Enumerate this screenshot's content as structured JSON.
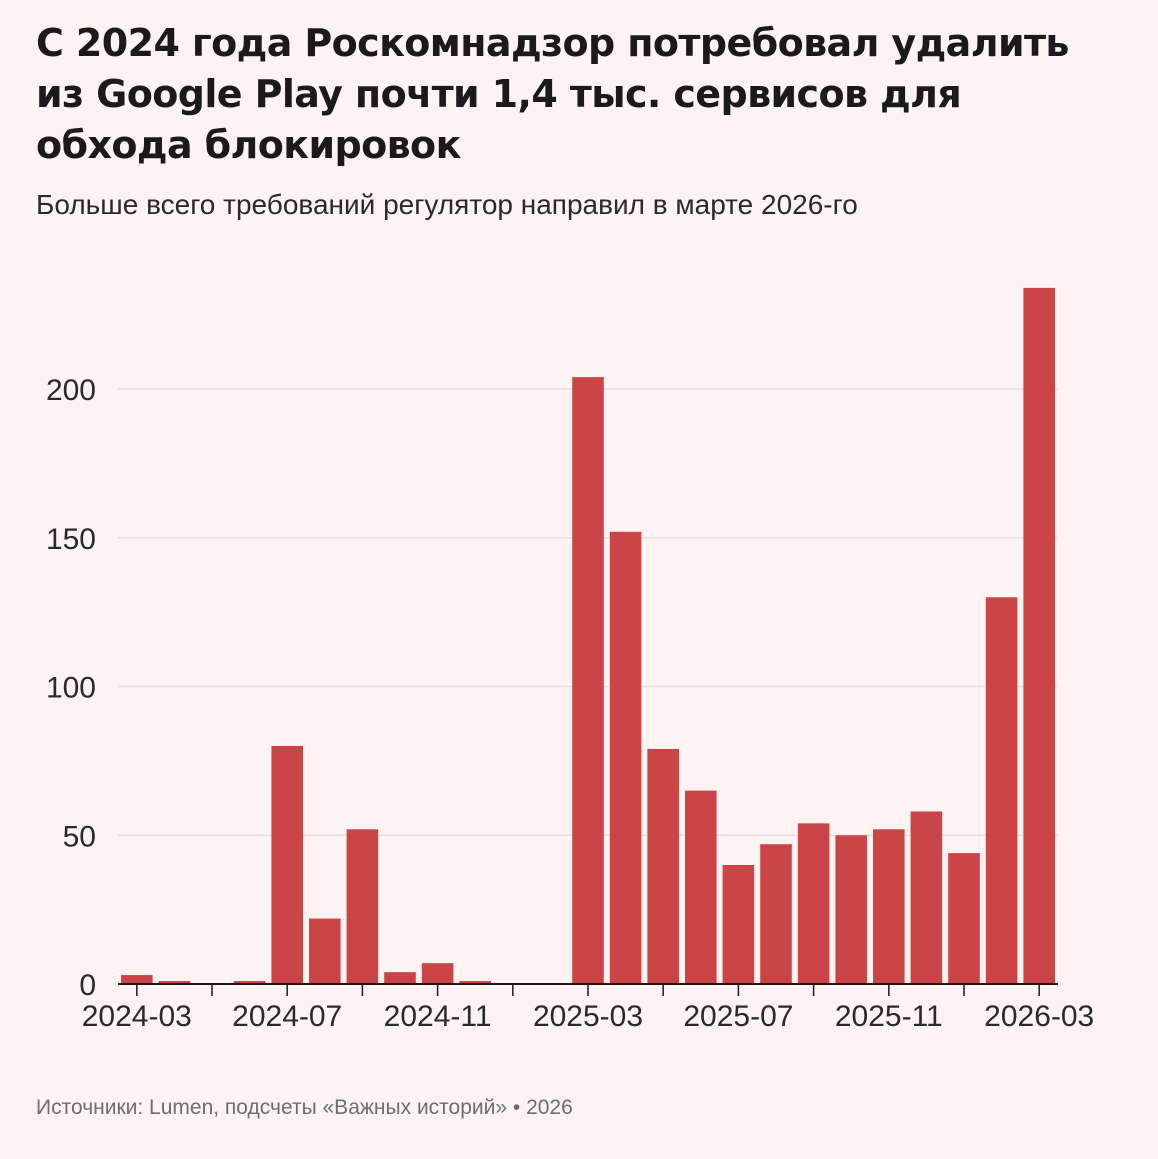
{
  "header": {
    "title": "С 2024 года Роскомнадзор потребовал удалить из Google Play почти 1,4 тыс. сервисов для обхода блокировок",
    "subtitle": "Больше всего требований регулятор направил в марте 2026-го"
  },
  "footer": {
    "source": "Источники: Lumen, подсчеты «Важных историй» • 2026"
  },
  "colors": {
    "bar": "#cb4547",
    "background": "#fdf3f3",
    "grid": "#e6e0e0",
    "axis": "#1a1a1a"
  },
  "chart_data": {
    "type": "bar",
    "title": "С 2024 года Роскомнадзор потребовал удалить из Google Play почти 1,4 тыс. сервисов для обхода блокировок",
    "subtitle": "Больше всего требований регулятор направил в марте 2026-го",
    "xlabel": "",
    "ylabel": "",
    "categories": [
      "2024-03",
      "2024-04",
      "2024-05",
      "2024-06",
      "2024-07",
      "2024-08",
      "2024-09",
      "2024-10",
      "2024-11",
      "2024-12",
      "2025-01",
      "2025-02",
      "2025-03",
      "2025-04",
      "2025-05",
      "2025-06",
      "2025-07",
      "2025-08",
      "2025-09",
      "2025-10",
      "2025-11",
      "2025-12",
      "2026-01",
      "2026-02",
      "2026-03"
    ],
    "values": [
      3,
      1,
      0,
      1,
      80,
      22,
      52,
      4,
      7,
      1,
      0,
      0,
      204,
      152,
      79,
      65,
      40,
      47,
      54,
      50,
      52,
      58,
      44,
      130,
      234
    ],
    "x_tick_labels": [
      "2024-03",
      "2024-07",
      "2024-11",
      "2025-03",
      "2025-07",
      "2025-11",
      "2026-03"
    ],
    "y_ticks": [
      0,
      50,
      100,
      150,
      200
    ],
    "ylim": [
      0,
      240
    ],
    "grid": true,
    "legend": "none"
  }
}
